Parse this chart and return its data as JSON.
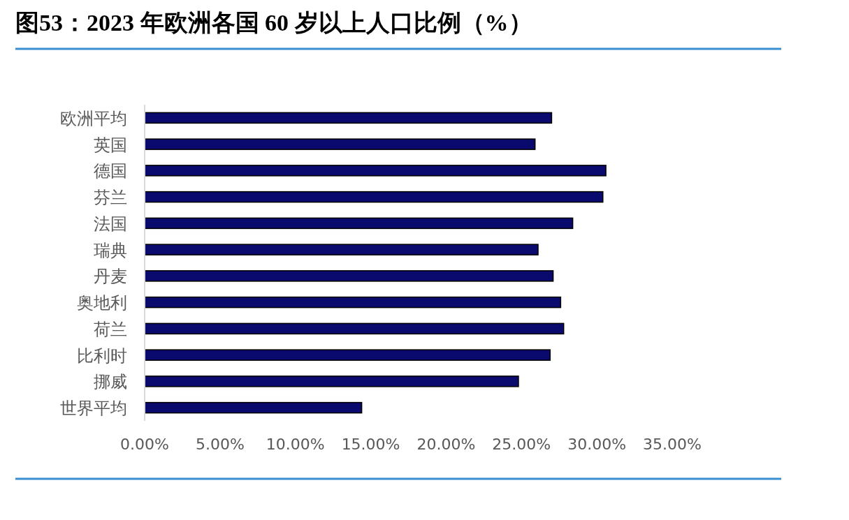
{
  "chart_data": {
    "type": "bar",
    "orientation": "horizontal",
    "title": "图53：2023 年欧洲各国 60 岁以上人口比例（%）",
    "categories": [
      "欧洲平均",
      "英国",
      "德国",
      "芬兰",
      "法国",
      "瑞典",
      "丹麦",
      "奥地利",
      "荷兰",
      "比利时",
      "挪威",
      "世界平均"
    ],
    "values": [
      27.0,
      25.9,
      30.6,
      30.4,
      28.4,
      26.1,
      27.1,
      27.6,
      27.8,
      26.9,
      24.8,
      14.4
    ],
    "color": "#0a0a6e",
    "xlim": [
      0,
      35
    ],
    "xticks": [
      {
        "value": 0,
        "label": "0.00%"
      },
      {
        "value": 5,
        "label": "5.00%"
      },
      {
        "value": 10,
        "label": "10.00%"
      },
      {
        "value": 15,
        "label": "15.00%"
      },
      {
        "value": 20,
        "label": "20.00%"
      },
      {
        "value": 25,
        "label": "25.00%"
      },
      {
        "value": 30,
        "label": "30.00%"
      },
      {
        "value": 35,
        "label": "35.00%"
      }
    ],
    "grid": false
  }
}
